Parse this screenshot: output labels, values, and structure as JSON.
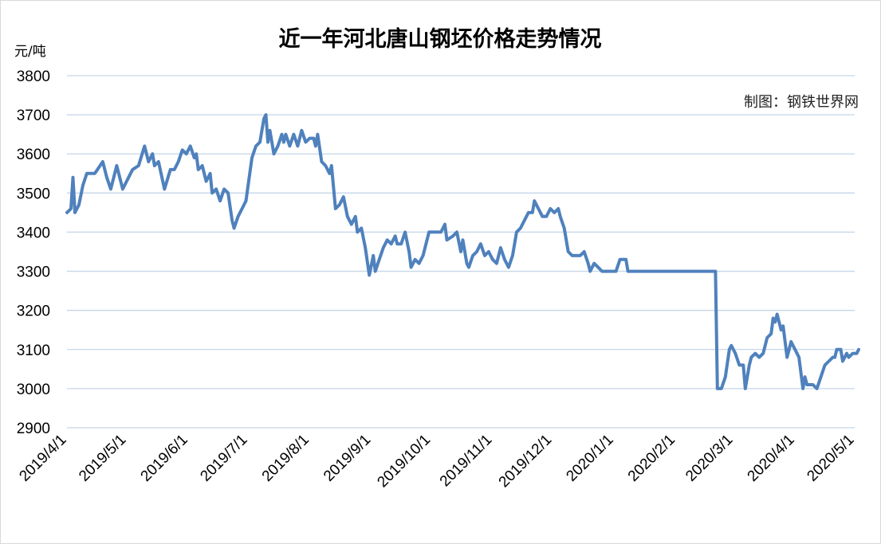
{
  "chart_data": {
    "type": "line",
    "title": "近一年河北唐山钢坯价格走势情况",
    "ylabel": "元/吨",
    "source": "制图：钢铁世界网",
    "ylim": [
      2900,
      3800
    ],
    "y_ticks": [
      3800,
      3700,
      3600,
      3500,
      3400,
      3300,
      3200,
      3100,
      3000,
      2900
    ],
    "x_ticks": [
      "2019/4/1",
      "2019/5/1",
      "2019/6/1",
      "2019/7/1",
      "2019/8/1",
      "2019/9/1",
      "2019/10/1",
      "2019/11/1",
      "2019/12/1",
      "2020/1/1",
      "2020/2/1",
      "2020/3/1",
      "2020/4/1",
      "2020/5/1"
    ],
    "grid": true,
    "colors": {
      "line": "#4f81bd",
      "grid": "#c5d6e8"
    },
    "series": [
      {
        "values": [
          [
            "2019/4/1",
            3450
          ],
          [
            "2019/4/3",
            3460
          ],
          [
            "2019/4/4",
            3540
          ],
          [
            "2019/4/5",
            3450
          ],
          [
            "2019/4/7",
            3470
          ],
          [
            "2019/4/9",
            3520
          ],
          [
            "2019/4/11",
            3550
          ],
          [
            "2019/4/15",
            3550
          ],
          [
            "2019/4/19",
            3580
          ],
          [
            "2019/4/21",
            3540
          ],
          [
            "2019/4/23",
            3510
          ],
          [
            "2019/4/26",
            3570
          ],
          [
            "2019/4/29",
            3510
          ],
          [
            "2019/5/2",
            3540
          ],
          [
            "2019/5/4",
            3560
          ],
          [
            "2019/5/7",
            3570
          ],
          [
            "2019/5/10",
            3620
          ],
          [
            "2019/5/12",
            3580
          ],
          [
            "2019/5/14",
            3600
          ],
          [
            "2019/5/15",
            3570
          ],
          [
            "2019/5/17",
            3580
          ],
          [
            "2019/5/20",
            3510
          ],
          [
            "2019/5/23",
            3560
          ],
          [
            "2019/5/25",
            3560
          ],
          [
            "2019/5/27",
            3580
          ],
          [
            "2019/5/29",
            3610
          ],
          [
            "2019/5/31",
            3600
          ],
          [
            "2019/6/2",
            3620
          ],
          [
            "2019/6/4",
            3590
          ],
          [
            "2019/6/5",
            3600
          ],
          [
            "2019/6/6",
            3560
          ],
          [
            "2019/6/8",
            3570
          ],
          [
            "2019/6/10",
            3530
          ],
          [
            "2019/6/12",
            3550
          ],
          [
            "2019/6/13",
            3500
          ],
          [
            "2019/6/15",
            3510
          ],
          [
            "2019/6/17",
            3480
          ],
          [
            "2019/6/19",
            3510
          ],
          [
            "2019/6/21",
            3500
          ],
          [
            "2019/6/23",
            3430
          ],
          [
            "2019/6/24",
            3410
          ],
          [
            "2019/6/26",
            3440
          ],
          [
            "2019/6/28",
            3460
          ],
          [
            "2019/6/30",
            3480
          ],
          [
            "2019/7/3",
            3590
          ],
          [
            "2019/7/5",
            3620
          ],
          [
            "2019/7/7",
            3630
          ],
          [
            "2019/7/9",
            3690
          ],
          [
            "2019/7/10",
            3700
          ],
          [
            "2019/7/11",
            3630
          ],
          [
            "2019/7/12",
            3660
          ],
          [
            "2019/7/14",
            3600
          ],
          [
            "2019/7/16",
            3620
          ],
          [
            "2019/7/18",
            3650
          ],
          [
            "2019/7/19",
            3630
          ],
          [
            "2019/7/20",
            3650
          ],
          [
            "2019/7/22",
            3620
          ],
          [
            "2019/7/24",
            3650
          ],
          [
            "2019/7/26",
            3620
          ],
          [
            "2019/7/28",
            3660
          ],
          [
            "2019/7/30",
            3630
          ],
          [
            "2019/8/1",
            3640
          ],
          [
            "2019/8/3",
            3640
          ],
          [
            "2019/8/4",
            3620
          ],
          [
            "2019/8/5",
            3650
          ],
          [
            "2019/8/7",
            3580
          ],
          [
            "2019/8/9",
            3570
          ],
          [
            "2019/8/11",
            3550
          ],
          [
            "2019/8/12",
            3570
          ],
          [
            "2019/8/14",
            3460
          ],
          [
            "2019/8/16",
            3470
          ],
          [
            "2019/8/18",
            3490
          ],
          [
            "2019/8/20",
            3440
          ],
          [
            "2019/8/22",
            3420
          ],
          [
            "2019/8/24",
            3440
          ],
          [
            "2019/8/25",
            3400
          ],
          [
            "2019/8/27",
            3410
          ],
          [
            "2019/8/29",
            3360
          ],
          [
            "2019/8/31",
            3290
          ],
          [
            "2019/9/2",
            3340
          ],
          [
            "2019/9/3",
            3300
          ],
          [
            "2019/9/5",
            3330
          ],
          [
            "2019/9/7",
            3360
          ],
          [
            "2019/9/9",
            3380
          ],
          [
            "2019/9/11",
            3370
          ],
          [
            "2019/9/13",
            3390
          ],
          [
            "2019/9/14",
            3370
          ],
          [
            "2019/9/16",
            3370
          ],
          [
            "2019/9/18",
            3400
          ],
          [
            "2019/9/20",
            3350
          ],
          [
            "2019/9/21",
            3310
          ],
          [
            "2019/9/23",
            3330
          ],
          [
            "2019/9/25",
            3320
          ],
          [
            "2019/9/27",
            3340
          ],
          [
            "2019/9/30",
            3400
          ],
          [
            "2019/10/4",
            3400
          ],
          [
            "2019/10/6",
            3400
          ],
          [
            "2019/10/8",
            3420
          ],
          [
            "2019/10/9",
            3380
          ],
          [
            "2019/10/12",
            3390
          ],
          [
            "2019/10/14",
            3400
          ],
          [
            "2019/10/16",
            3350
          ],
          [
            "2019/10/17",
            3380
          ],
          [
            "2019/10/19",
            3320
          ],
          [
            "2019/10/20",
            3310
          ],
          [
            "2019/10/22",
            3340
          ],
          [
            "2019/10/24",
            3350
          ],
          [
            "2019/10/26",
            3370
          ],
          [
            "2019/10/28",
            3340
          ],
          [
            "2019/10/30",
            3350
          ],
          [
            "2019/11/1",
            3330
          ],
          [
            "2019/11/3",
            3320
          ],
          [
            "2019/11/5",
            3360
          ],
          [
            "2019/11/7",
            3330
          ],
          [
            "2019/11/9",
            3310
          ],
          [
            "2019/11/11",
            3340
          ],
          [
            "2019/11/13",
            3400
          ],
          [
            "2019/11/15",
            3410
          ],
          [
            "2019/11/17",
            3430
          ],
          [
            "2019/11/19",
            3450
          ],
          [
            "2019/11/21",
            3450
          ],
          [
            "2019/11/22",
            3480
          ],
          [
            "2019/11/24",
            3460
          ],
          [
            "2019/11/26",
            3440
          ],
          [
            "2019/11/28",
            3440
          ],
          [
            "2019/11/30",
            3460
          ],
          [
            "2019/12/2",
            3450
          ],
          [
            "2019/12/4",
            3460
          ],
          [
            "2019/12/5",
            3440
          ],
          [
            "2019/12/7",
            3410
          ],
          [
            "2019/12/9",
            3350
          ],
          [
            "2019/12/11",
            3340
          ],
          [
            "2019/12/13",
            3340
          ],
          [
            "2019/12/15",
            3340
          ],
          [
            "2019/12/17",
            3350
          ],
          [
            "2019/12/19",
            3320
          ],
          [
            "2019/12/20",
            3300
          ],
          [
            "2019/12/22",
            3320
          ],
          [
            "2019/12/24",
            3310
          ],
          [
            "2019/12/26",
            3300
          ],
          [
            "2019/12/30",
            3300
          ],
          [
            "2020/1/2",
            3300
          ],
          [
            "2020/1/4",
            3330
          ],
          [
            "2020/1/7",
            3330
          ],
          [
            "2020/1/8",
            3300
          ],
          [
            "2020/2/21",
            3300
          ],
          [
            "2020/2/22",
            3000
          ],
          [
            "2020/2/24",
            3000
          ],
          [
            "2020/2/26",
            3030
          ],
          [
            "2020/2/28",
            3100
          ],
          [
            "2020/2/29",
            3110
          ],
          [
            "2020/3/2",
            3090
          ],
          [
            "2020/3/4",
            3060
          ],
          [
            "2020/3/6",
            3060
          ],
          [
            "2020/3/7",
            3000
          ],
          [
            "2020/3/9",
            3060
          ],
          [
            "2020/3/10",
            3080
          ],
          [
            "2020/3/12",
            3090
          ],
          [
            "2020/3/14",
            3080
          ],
          [
            "2020/3/16",
            3090
          ],
          [
            "2020/3/18",
            3130
          ],
          [
            "2020/3/20",
            3140
          ],
          [
            "2020/3/21",
            3180
          ],
          [
            "2020/3/22",
            3170
          ],
          [
            "2020/3/23",
            3190
          ],
          [
            "2020/3/25",
            3150
          ],
          [
            "2020/3/26",
            3160
          ],
          [
            "2020/3/28",
            3080
          ],
          [
            "2020/3/30",
            3120
          ],
          [
            "2020/4/1",
            3100
          ],
          [
            "2020/4/3",
            3080
          ],
          [
            "2020/4/4",
            3040
          ],
          [
            "2020/4/5",
            3000
          ],
          [
            "2020/4/6",
            3030
          ],
          [
            "2020/4/7",
            3010
          ],
          [
            "2020/4/10",
            3010
          ],
          [
            "2020/4/12",
            3000
          ],
          [
            "2020/4/14",
            3030
          ],
          [
            "2020/4/16",
            3060
          ],
          [
            "2020/4/18",
            3070
          ],
          [
            "2020/4/20",
            3080
          ],
          [
            "2020/4/21",
            3080
          ],
          [
            "2020/4/22",
            3100
          ],
          [
            "2020/4/24",
            3100
          ],
          [
            "2020/4/25",
            3070
          ],
          [
            "2020/4/27",
            3090
          ],
          [
            "2020/4/28",
            3080
          ],
          [
            "2020/4/30",
            3090
          ],
          [
            "2020/5/2",
            3090
          ],
          [
            "2020/5/3",
            3100
          ]
        ]
      }
    ]
  }
}
